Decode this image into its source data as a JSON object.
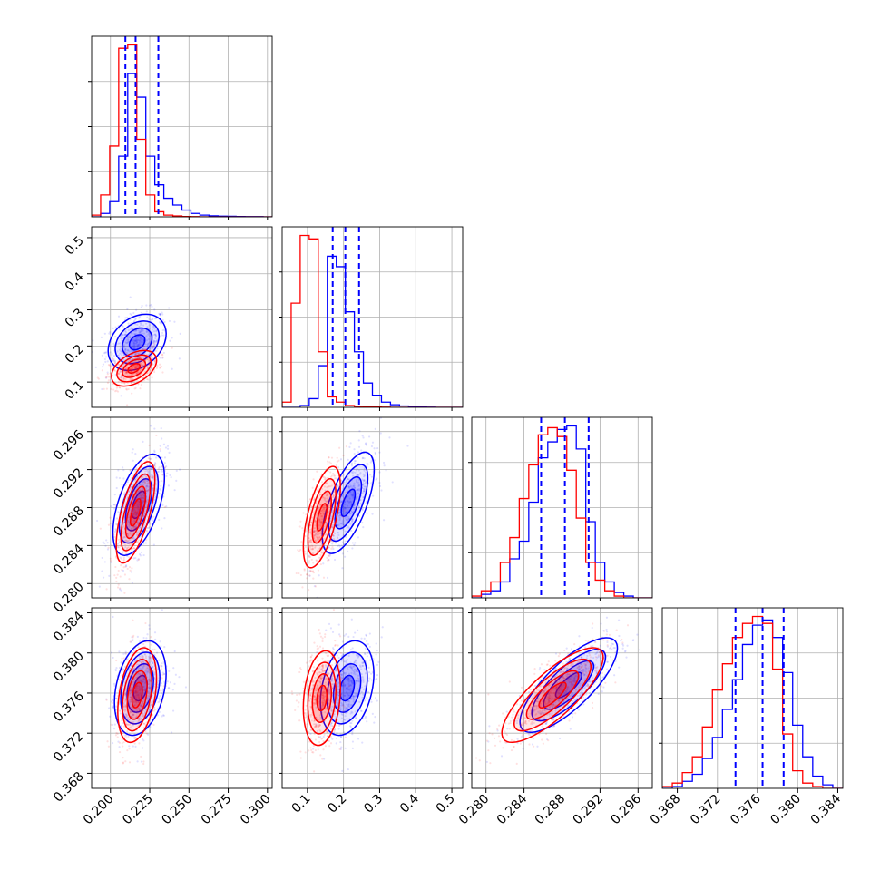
{
  "colors": {
    "blue": "#0000ff",
    "red": "#ff0000",
    "grid": "#b0b0b0",
    "frame": "#000000"
  },
  "chart_data": {
    "type": "corner",
    "grid": true,
    "series": [
      {
        "color": "blue",
        "note_color_hex": "#0000ff"
      },
      {
        "color": "red",
        "note_color_hex": "#ff0000"
      }
    ],
    "parameters": [
      {
        "range": [
          0.188,
          0.303
        ],
        "ticks": [
          0.2,
          0.225,
          0.25,
          0.275,
          0.3
        ],
        "tick_labels": [
          "0.200",
          "0.225",
          "0.250",
          "0.275",
          "0.300"
        ]
      },
      {
        "range": [
          0.03,
          0.53
        ],
        "ticks": [
          0.1,
          0.2,
          0.3,
          0.4,
          0.5
        ],
        "tick_labels": [
          "0.1",
          "0.2",
          "0.3",
          "0.4",
          "0.5"
        ]
      },
      {
        "range": [
          0.2785,
          0.2975
        ],
        "ticks": [
          0.28,
          0.284,
          0.288,
          0.292,
          0.296
        ],
        "tick_labels": [
          "0.280",
          "0.284",
          "0.288",
          "0.292",
          "0.296"
        ]
      },
      {
        "range": [
          0.3665,
          0.3845
        ],
        "ticks": [
          0.368,
          0.372,
          0.376,
          0.38,
          0.384
        ],
        "tick_labels": [
          "0.368",
          "0.372",
          "0.376",
          "0.380",
          "0.384"
        ]
      }
    ],
    "quantile_lines": {
      "color": "blue",
      "values": [
        [
          0.2095,
          0.216,
          0.2305
        ],
        [
          0.17,
          0.205,
          0.243
        ],
        [
          0.2858,
          0.2883,
          0.2908
        ],
        [
          0.3738,
          0.3765,
          0.3786
        ]
      ]
    },
    "histograms": [
      {
        "edges": [
          0.188,
          0.19375,
          0.1995,
          0.20525,
          0.211,
          0.21675,
          0.2225,
          0.22825,
          0.234,
          0.23975,
          0.2455,
          0.25125,
          0.257,
          0.26275,
          0.2685,
          0.27425,
          0.28,
          0.28575,
          0.2915,
          0.29725,
          0.303
        ],
        "blue": [
          0.0,
          0.02,
          0.09,
          0.36,
          0.85,
          0.71,
          0.36,
          0.19,
          0.11,
          0.07,
          0.04,
          0.02,
          0.01,
          0.006,
          0.004,
          0.003,
          0.002,
          0.001,
          0.001,
          0.0
        ],
        "red": [
          0.01,
          0.13,
          0.42,
          1.0,
          1.02,
          0.46,
          0.13,
          0.03,
          0.01,
          0.005,
          0.002,
          0.001,
          0.0,
          0.0,
          0.0,
          0.0,
          0.0,
          0.0,
          0.0,
          0.0
        ]
      },
      {
        "edges": [
          0.03,
          0.055,
          0.08,
          0.105,
          0.13,
          0.155,
          0.18,
          0.205,
          0.23,
          0.255,
          0.28,
          0.305,
          0.33,
          0.355,
          0.38,
          0.405,
          0.43,
          0.455,
          0.48,
          0.505,
          0.53
        ],
        "blue": [
          0.0,
          0.0,
          0.01,
          0.05,
          0.24,
          0.87,
          0.81,
          0.55,
          0.32,
          0.14,
          0.07,
          0.03,
          0.015,
          0.008,
          0.004,
          0.002,
          0.001,
          0.0,
          0.0,
          0.0
        ],
        "red": [
          0.03,
          0.6,
          0.99,
          0.97,
          0.32,
          0.06,
          0.03,
          0.01,
          0.005,
          0.003,
          0.002,
          0.001,
          0.0,
          0.0,
          0.0,
          0.0,
          0.0,
          0.0,
          0.0,
          0.0
        ]
      },
      {
        "edges": [
          0.2785,
          0.2795,
          0.2805,
          0.2815,
          0.2825,
          0.2835,
          0.2845,
          0.2855,
          0.2865,
          0.2875,
          0.2885,
          0.2895,
          0.2905,
          0.2915,
          0.2925,
          0.2935,
          0.2945,
          0.2955,
          0.2965,
          0.2975
        ],
        "blue": [
          0.0,
          0.02,
          0.04,
          0.09,
          0.22,
          0.32,
          0.54,
          0.79,
          0.88,
          0.95,
          0.97,
          0.84,
          0.43,
          0.2,
          0.09,
          0.03,
          0.01,
          0.0,
          0.0
        ],
        "red": [
          0.01,
          0.04,
          0.09,
          0.2,
          0.34,
          0.56,
          0.75,
          0.92,
          0.96,
          0.91,
          0.72,
          0.45,
          0.2,
          0.1,
          0.04,
          0.01,
          0.0,
          0.0,
          0.0
        ]
      },
      {
        "edges": [
          0.3665,
          0.3675,
          0.3685,
          0.3695,
          0.3705,
          0.3715,
          0.3725,
          0.3735,
          0.3745,
          0.3755,
          0.3765,
          0.3775,
          0.3785,
          0.3795,
          0.3805,
          0.3815,
          0.3825,
          0.3835,
          0.3845
        ],
        "blue": [
          0.0,
          0.01,
          0.04,
          0.08,
          0.17,
          0.29,
          0.45,
          0.62,
          0.82,
          0.93,
          0.96,
          0.86,
          0.66,
          0.36,
          0.18,
          0.07,
          0.02,
          0.0
        ],
        "red": [
          0.01,
          0.03,
          0.09,
          0.18,
          0.35,
          0.56,
          0.71,
          0.86,
          0.94,
          0.98,
          0.94,
          0.68,
          0.31,
          0.1,
          0.03,
          0.01,
          0.0,
          0.0
        ]
      }
    ],
    "pairs": [
      {
        "x": 0,
        "y": 1,
        "blue": {
          "mean": [
            0.217,
            0.21
          ],
          "sd": [
            0.009,
            0.038
          ],
          "rho": 0.3
        },
        "red": {
          "mean": [
            0.215,
            0.138
          ],
          "sd": [
            0.007,
            0.024
          ],
          "rho": 0.45
        }
      },
      {
        "x": 0,
        "y": 2,
        "blue": {
          "mean": [
            0.218,
            0.2883
          ],
          "sd": [
            0.008,
            0.0026
          ],
          "rho": 0.55
        },
        "red": {
          "mean": [
            0.216,
            0.2875
          ],
          "sd": [
            0.006,
            0.0026
          ],
          "rho": 0.65
        }
      },
      {
        "x": 0,
        "y": 3,
        "blue": {
          "mean": [
            0.219,
            0.3765
          ],
          "sd": [
            0.008,
            0.0023
          ],
          "rho": 0.3
        },
        "red": {
          "mean": [
            0.217,
            0.3758
          ],
          "sd": [
            0.006,
            0.0023
          ],
          "rho": 0.35
        }
      },
      {
        "x": 1,
        "y": 2,
        "blue": {
          "mean": [
            0.213,
            0.2885
          ],
          "sd": [
            0.035,
            0.0026
          ],
          "rho": 0.65
        },
        "red": {
          "mean": [
            0.14,
            0.287
          ],
          "sd": [
            0.025,
            0.0026
          ],
          "rho": 0.6
        }
      },
      {
        "x": 1,
        "y": 3,
        "blue": {
          "mean": [
            0.21,
            0.3765
          ],
          "sd": [
            0.036,
            0.0023
          ],
          "rho": 0.3
        },
        "red": {
          "mean": [
            0.14,
            0.3755
          ],
          "sd": [
            0.025,
            0.0023
          ],
          "rho": 0.2
        }
      },
      {
        "x": 2,
        "y": 3,
        "blue": {
          "mean": [
            0.2887,
            0.3768
          ],
          "sd": [
            0.0025,
            0.0023
          ],
          "rho": 0.78
        },
        "red": {
          "mean": [
            0.287,
            0.3758
          ],
          "sd": [
            0.0026,
            0.0023
          ],
          "rho": 0.8
        }
      }
    ]
  }
}
